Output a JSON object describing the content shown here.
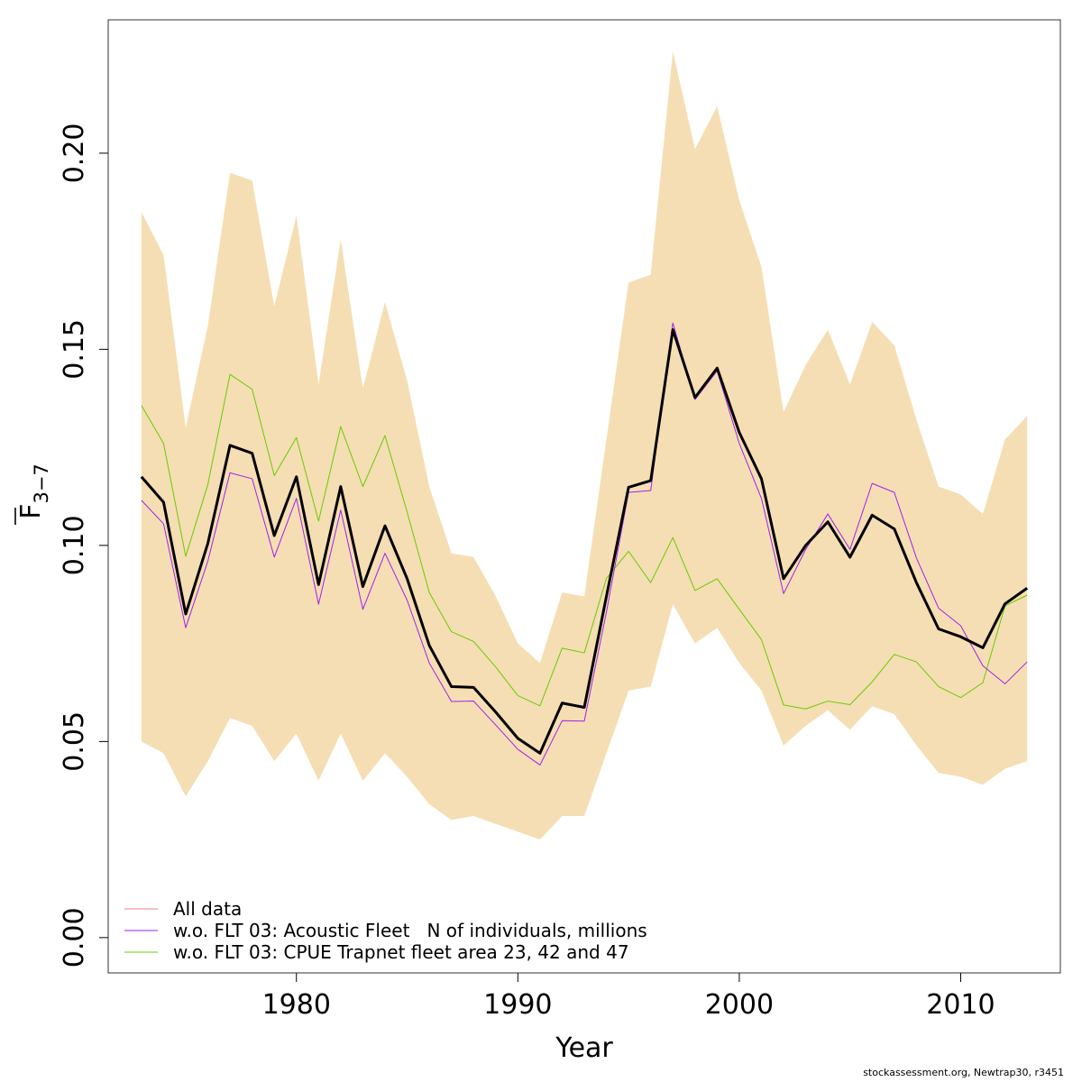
{
  "chart_data": {
    "type": "line",
    "xlabel": "Year",
    "ylabel_main": "F",
    "ylabel_sub": "3−7",
    "xlim": [
      1971.5,
      2014.5
    ],
    "ylim": [
      -0.009,
      0.234
    ],
    "x_ticks": [
      1980,
      1990,
      2000,
      2010
    ],
    "y_ticks": [
      0.0,
      0.05,
      0.1,
      0.15,
      0.2
    ],
    "y_tick_labels": [
      "0.00",
      "0.05",
      "0.10",
      "0.15",
      "0.20"
    ],
    "x": [
      1973,
      1974,
      1975,
      1976,
      1977,
      1978,
      1979,
      1980,
      1981,
      1982,
      1983,
      1984,
      1985,
      1986,
      1987,
      1988,
      1989,
      1990,
      1991,
      1992,
      1993,
      1994,
      1995,
      1996,
      1997,
      1998,
      1999,
      2000,
      2001,
      2002,
      2003,
      2004,
      2005,
      2006,
      2007,
      2008,
      2009,
      2010,
      2011,
      2012,
      2013
    ],
    "band": {
      "color": "#f5deb3",
      "upper": [
        0.185,
        0.174,
        0.13,
        0.156,
        0.195,
        0.193,
        0.161,
        0.184,
        0.141,
        0.178,
        0.14,
        0.162,
        0.142,
        0.115,
        0.098,
        0.097,
        0.087,
        0.075,
        0.07,
        0.088,
        0.087,
        0.127,
        0.167,
        0.169,
        0.226,
        0.201,
        0.212,
        0.188,
        0.171,
        0.134,
        0.146,
        0.155,
        0.141,
        0.157,
        0.151,
        0.132,
        0.115,
        0.113,
        0.108,
        0.127,
        0.133
      ],
      "lower": [
        0.05,
        0.047,
        0.036,
        0.045,
        0.056,
        0.054,
        0.045,
        0.052,
        0.04,
        0.052,
        0.04,
        0.047,
        0.041,
        0.034,
        0.03,
        0.031,
        0.029,
        0.027,
        0.025,
        0.031,
        0.031,
        0.047,
        0.063,
        0.064,
        0.085,
        0.075,
        0.079,
        0.07,
        0.063,
        0.049,
        0.054,
        0.058,
        0.053,
        0.059,
        0.057,
        0.049,
        0.042,
        0.041,
        0.039,
        0.043,
        0.045
      ]
    },
    "series": [
      {
        "name": "All data",
        "color": "#000000",
        "width": 3,
        "values": [
          0.1175,
          0.111,
          0.0825,
          0.1005,
          0.1255,
          0.1235,
          0.1025,
          0.1175,
          0.09,
          0.115,
          0.0895,
          0.105,
          0.0915,
          0.0745,
          0.064,
          0.0638,
          0.0575,
          0.0508,
          0.047,
          0.0598,
          0.0587,
          0.087,
          0.1148,
          0.1165,
          0.155,
          0.1377,
          0.1452,
          0.1288,
          0.117,
          0.0915,
          0.1,
          0.106,
          0.097,
          0.1077,
          0.1042,
          0.0905,
          0.0787,
          0.0767,
          0.0739,
          0.0851,
          0.0891
        ]
      },
      {
        "name": "w.o. FLT 03: Acoustic Fleet   N of individuals, millions",
        "color": "#a020f0",
        "width": 1,
        "values": [
          0.1115,
          0.1055,
          0.079,
          0.096,
          0.1185,
          0.117,
          0.097,
          0.112,
          0.085,
          0.109,
          0.0837,
          0.098,
          0.086,
          0.07,
          0.0602,
          0.0603,
          0.0542,
          0.048,
          0.044,
          0.0553,
          0.0552,
          0.083,
          0.1135,
          0.114,
          0.1567,
          0.1372,
          0.1445,
          0.126,
          0.112,
          0.0877,
          0.099,
          0.108,
          0.099,
          0.1158,
          0.1135,
          0.0968,
          0.084,
          0.0795,
          0.0693,
          0.0647,
          0.0703
        ]
      },
      {
        "name": "w.o. FLT 03: CPUE Trapnet fleet area 23, 42 and 47",
        "color": "#66cc00",
        "width": 1,
        "values": [
          0.1357,
          0.126,
          0.0972,
          0.1155,
          0.1436,
          0.1398,
          0.1178,
          0.1275,
          0.1062,
          0.1303,
          0.115,
          0.128,
          0.1085,
          0.088,
          0.078,
          0.0755,
          0.069,
          0.0617,
          0.0591,
          0.0738,
          0.0726,
          0.0916,
          0.0985,
          0.0905,
          0.102,
          0.0885,
          0.0915,
          0.0837,
          0.076,
          0.0593,
          0.0583,
          0.0603,
          0.0594,
          0.0652,
          0.0722,
          0.0703,
          0.064,
          0.0612,
          0.065,
          0.0846,
          0.0873
        ]
      }
    ],
    "legend": [
      {
        "label": "All data",
        "color": "#f08080"
      },
      {
        "label": "w.o. FLT 03: Acoustic Fleet   N of individuals, millions",
        "color": "#a020f0"
      },
      {
        "label": "w.o. FLT 03: CPUE Trapnet fleet area 23, 42 and 47",
        "color": "#66cc00"
      }
    ],
    "legend_position": "bottom-left"
  },
  "footer": {
    "credit": "stockassessment.org, Newtrap30, r3451"
  }
}
